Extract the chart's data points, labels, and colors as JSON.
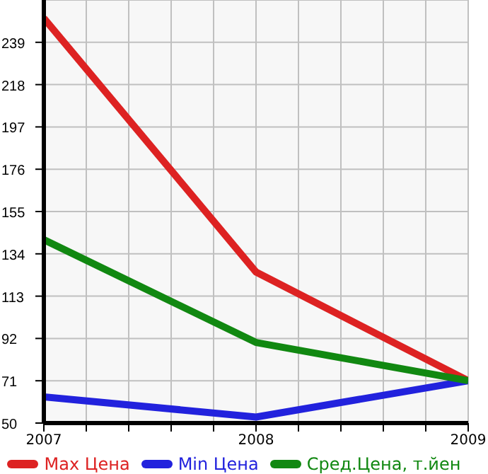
{
  "chart_data": {
    "type": "line",
    "x": [
      2007,
      2008,
      2009
    ],
    "series": [
      {
        "name": "Max Цена",
        "color": "#dd2222",
        "values": [
          251,
          125,
          71
        ]
      },
      {
        "name": "Min Цена",
        "color": "#2222dd",
        "values": [
          63,
          53,
          71
        ]
      },
      {
        "name": "Сред.Цена, т.йен",
        "color": "#118811",
        "values": [
          141,
          90,
          71
        ]
      }
    ],
    "xlim": [
      2007,
      2009
    ],
    "xticks": [
      2007,
      {
        "value": 2007.2,
        "label": null
      },
      {
        "value": 2007.4,
        "label": null
      },
      {
        "value": 2007.6,
        "label": null
      },
      {
        "value": 2007.8,
        "label": null
      },
      2008,
      {
        "value": 2008.2,
        "label": null
      },
      {
        "value": 2008.4,
        "label": null
      },
      {
        "value": 2008.6,
        "label": null
      },
      {
        "value": 2008.8,
        "label": null
      },
      2009
    ],
    "ylim": [
      50,
      260
    ],
    "yticks": [
      50,
      71,
      92,
      113,
      134,
      155,
      176,
      197,
      218,
      239
    ],
    "grid": true,
    "legend": "bottom",
    "marker": "none",
    "line_style": "solid"
  }
}
